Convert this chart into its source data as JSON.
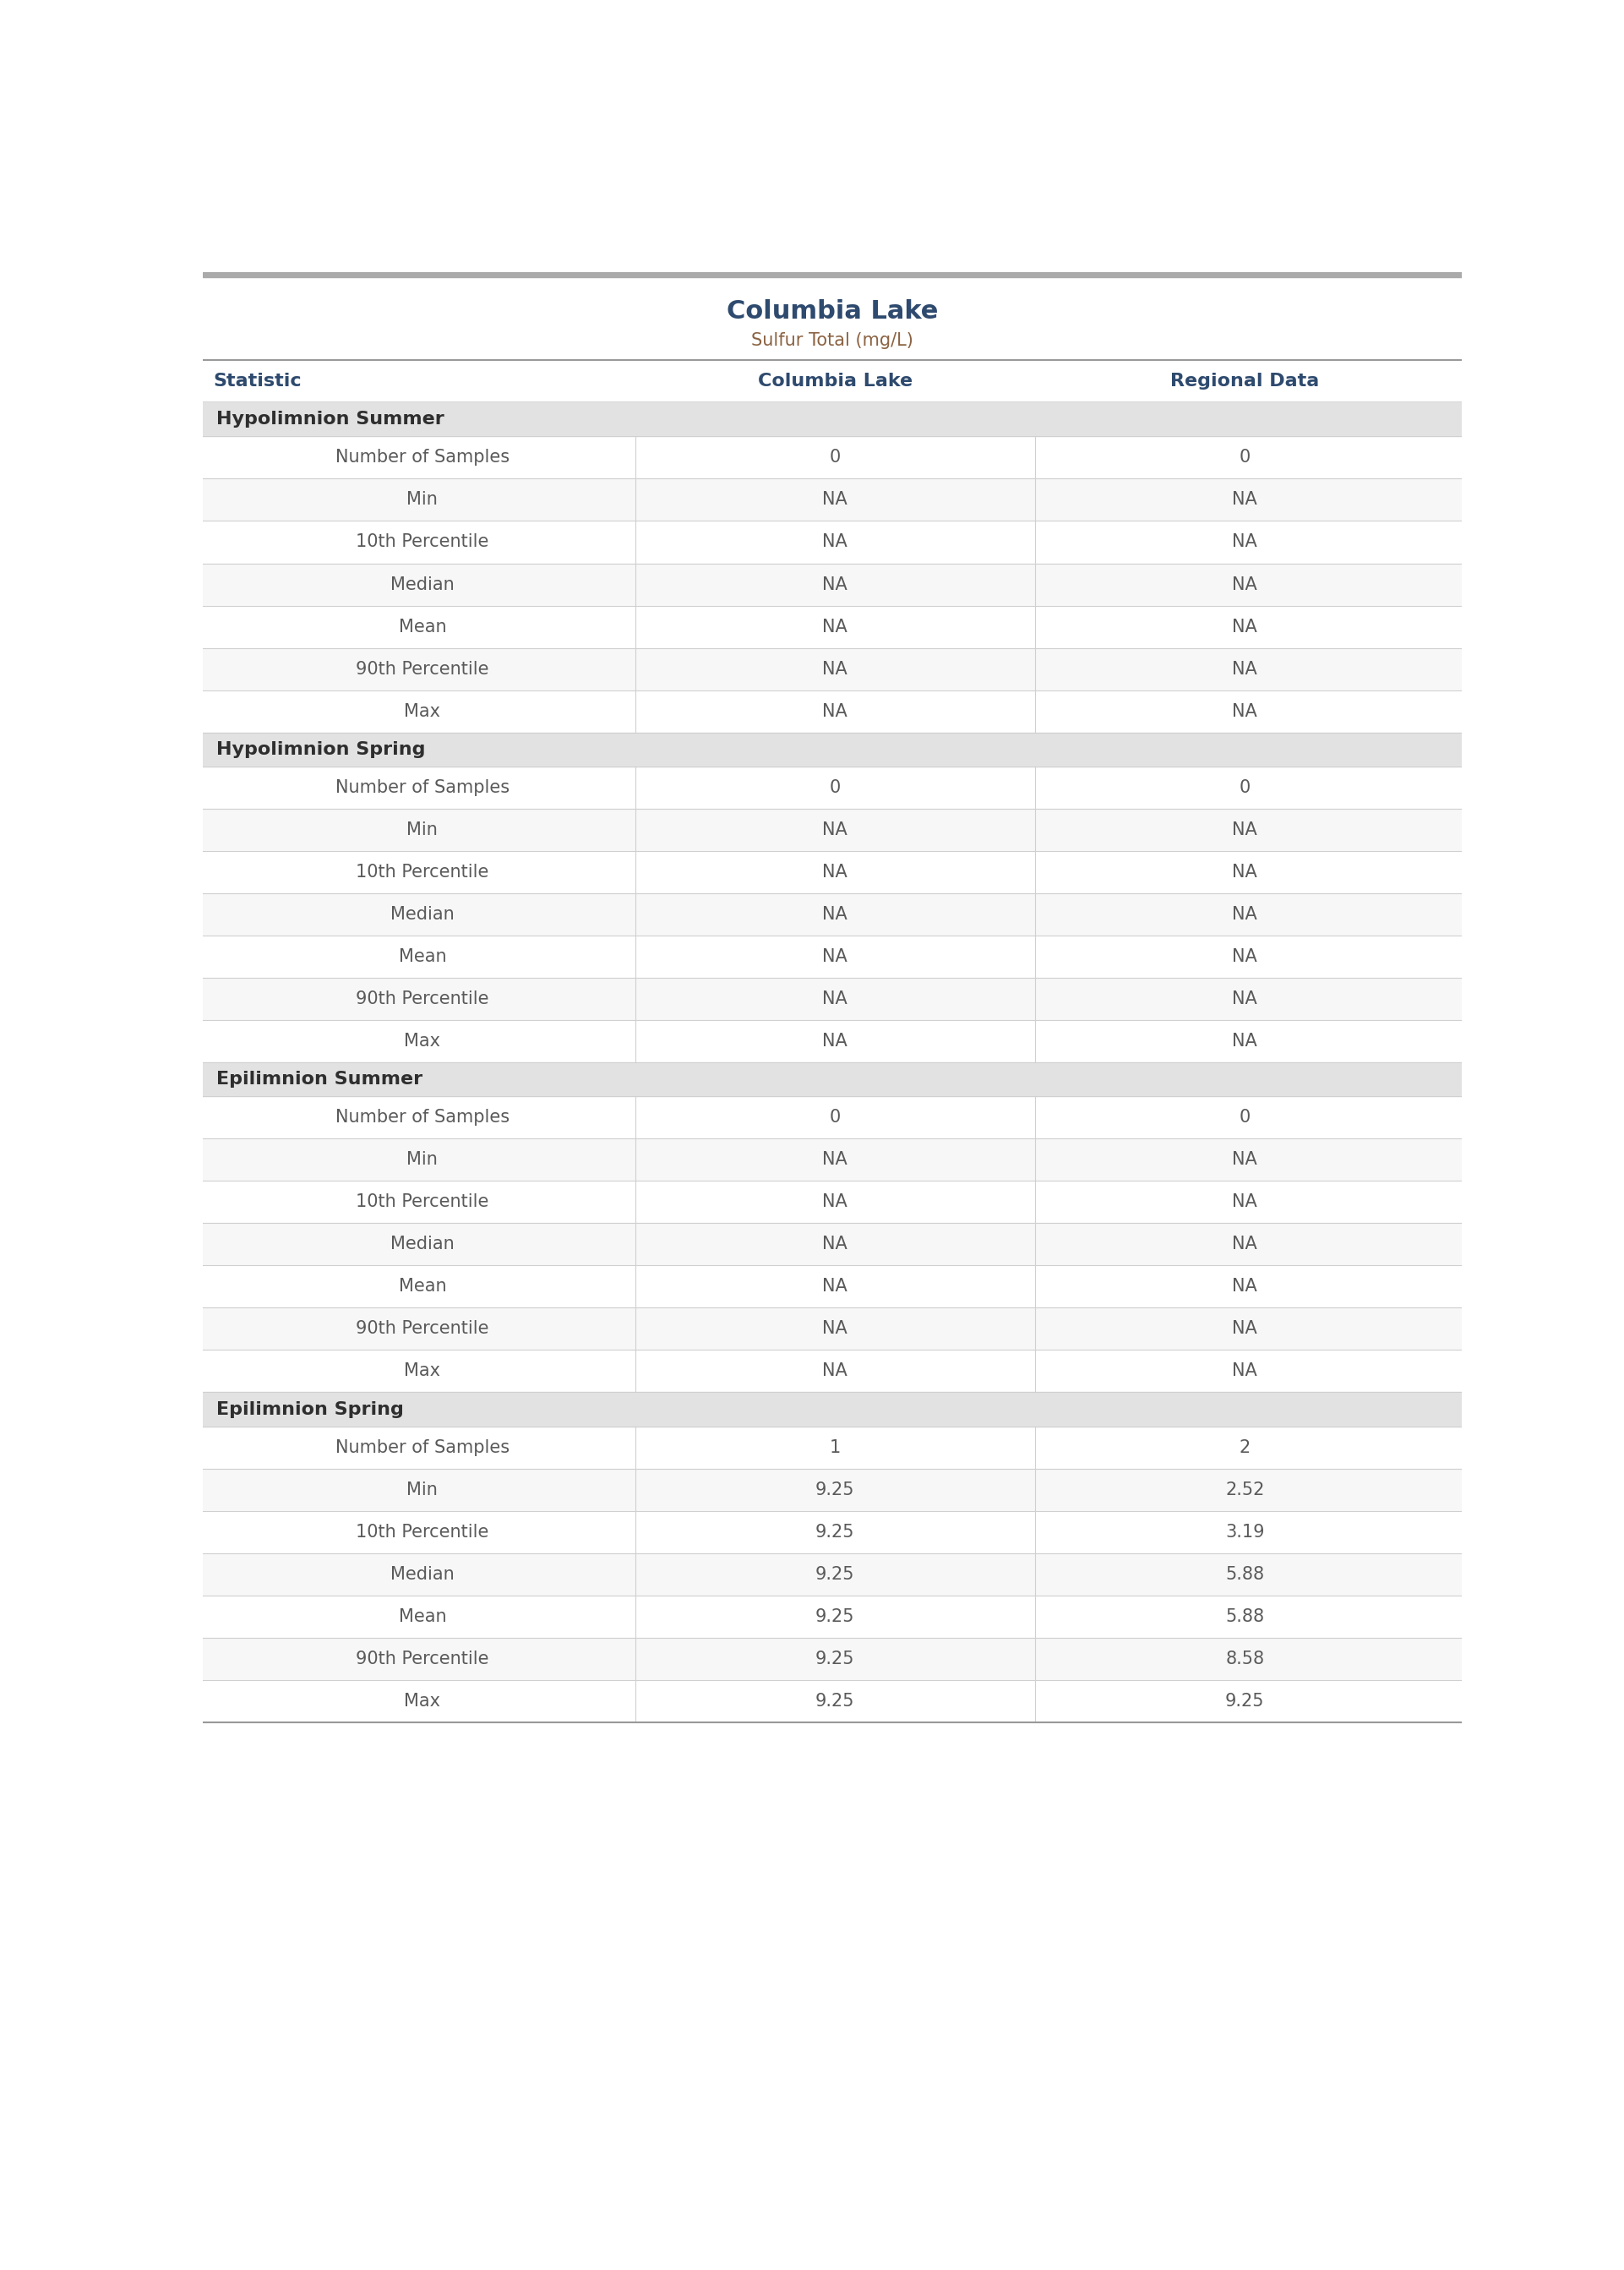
{
  "title": "Columbia Lake",
  "subtitle": "Sulfur Total (mg/L)",
  "col_headers": [
    "Statistic",
    "Columbia Lake",
    "Regional Data"
  ],
  "sections": [
    {
      "name": "Hypolimnion Summer",
      "rows": [
        [
          "Number of Samples",
          "0",
          "0"
        ],
        [
          "Min",
          "NA",
          "NA"
        ],
        [
          "10th Percentile",
          "NA",
          "NA"
        ],
        [
          "Median",
          "NA",
          "NA"
        ],
        [
          "Mean",
          "NA",
          "NA"
        ],
        [
          "90th Percentile",
          "NA",
          "NA"
        ],
        [
          "Max",
          "NA",
          "NA"
        ]
      ]
    },
    {
      "name": "Hypolimnion Spring",
      "rows": [
        [
          "Number of Samples",
          "0",
          "0"
        ],
        [
          "Min",
          "NA",
          "NA"
        ],
        [
          "10th Percentile",
          "NA",
          "NA"
        ],
        [
          "Median",
          "NA",
          "NA"
        ],
        [
          "Mean",
          "NA",
          "NA"
        ],
        [
          "90th Percentile",
          "NA",
          "NA"
        ],
        [
          "Max",
          "NA",
          "NA"
        ]
      ]
    },
    {
      "name": "Epilimnion Summer",
      "rows": [
        [
          "Number of Samples",
          "0",
          "0"
        ],
        [
          "Min",
          "NA",
          "NA"
        ],
        [
          "10th Percentile",
          "NA",
          "NA"
        ],
        [
          "Median",
          "NA",
          "NA"
        ],
        [
          "Mean",
          "NA",
          "NA"
        ],
        [
          "90th Percentile",
          "NA",
          "NA"
        ],
        [
          "Max",
          "NA",
          "NA"
        ]
      ]
    },
    {
      "name": "Epilimnion Spring",
      "rows": [
        [
          "Number of Samples",
          "1",
          "2"
        ],
        [
          "Min",
          "9.25",
          "2.52"
        ],
        [
          "10th Percentile",
          "9.25",
          "3.19"
        ],
        [
          "Median",
          "9.25",
          "5.88"
        ],
        [
          "Mean",
          "9.25",
          "5.88"
        ],
        [
          "90th Percentile",
          "9.25",
          "8.58"
        ],
        [
          "Max",
          "9.25",
          "9.25"
        ]
      ]
    }
  ],
  "colors": {
    "title": "#2e4a6e",
    "subtitle": "#8b6343",
    "header_text": "#2e4a6e",
    "section_bg": "#e2e2e2",
    "section_text": "#2e2e2e",
    "row_bg_odd": "#f7f7f7",
    "row_bg_even": "#ffffff",
    "cell_text": "#5a5a5a",
    "value_text": "#5a5a5a",
    "border": "#d0d0d0",
    "top_border": "#999999",
    "header_border": "#cccccc",
    "background": "#ffffff"
  },
  "title_fontsize": 22,
  "subtitle_fontsize": 15,
  "header_fontsize": 16,
  "section_fontsize": 16,
  "cell_fontsize": 15
}
